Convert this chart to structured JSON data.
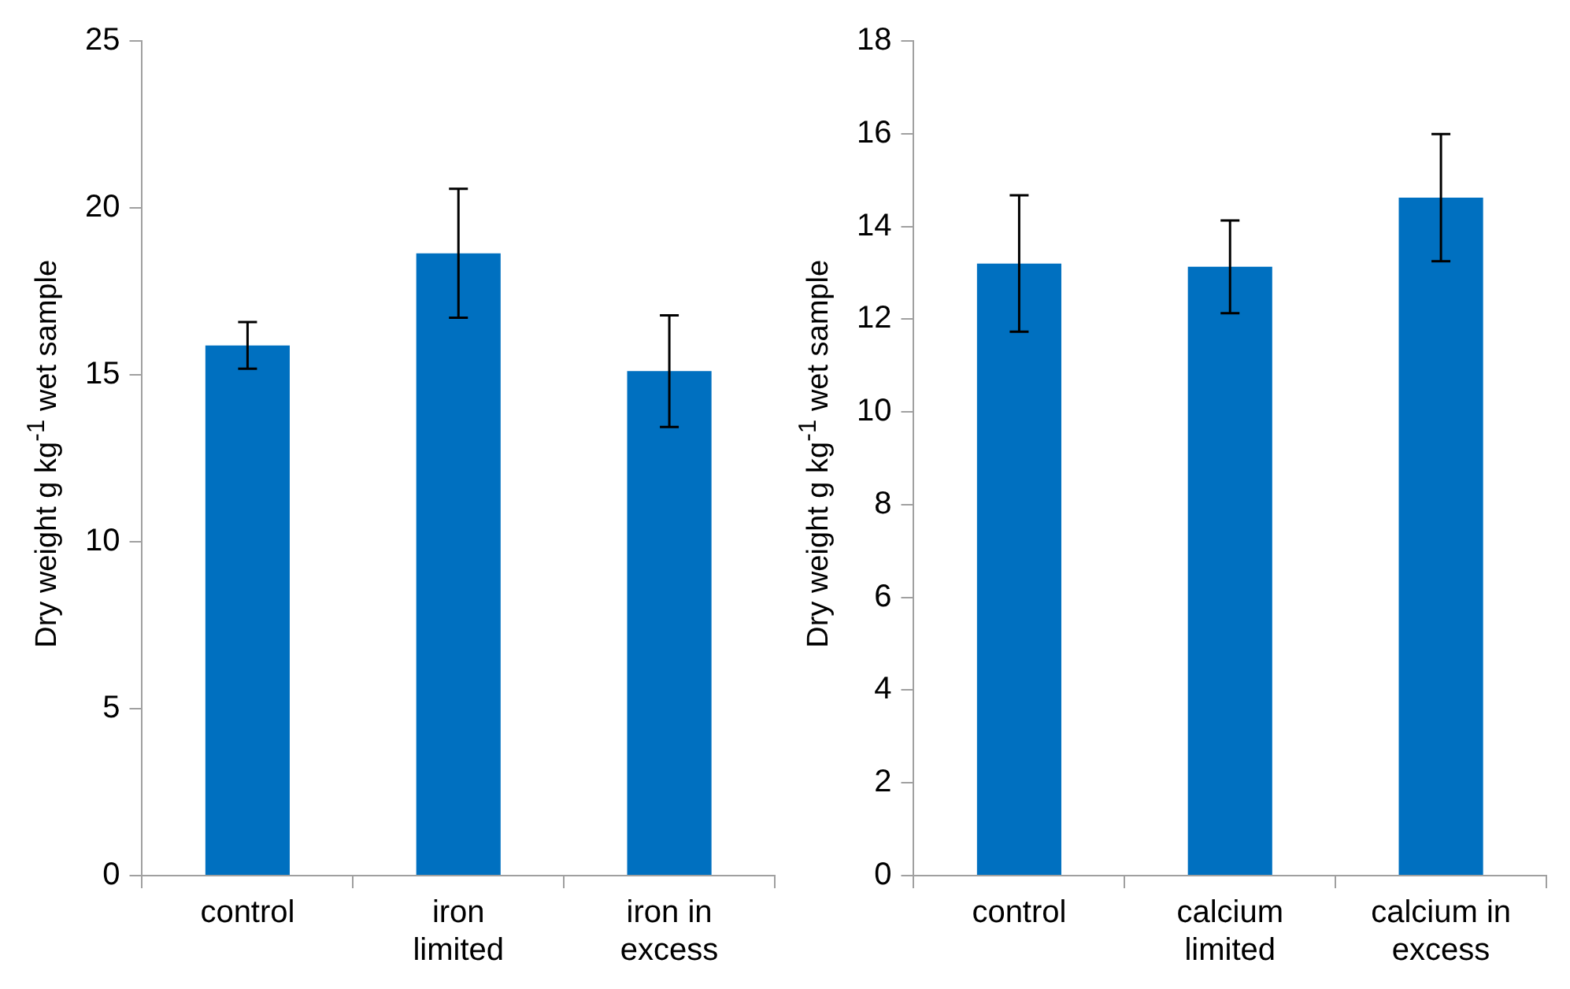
{
  "chart_data": [
    {
      "type": "bar",
      "ylabel": "Dry weight g kg$^{-1}$  wet sample",
      "categories": [
        "control",
        "iron limited",
        "iron in excess"
      ],
      "values": [
        15.88,
        18.64,
        15.11
      ],
      "errors": [
        0.7,
        1.93,
        1.67
      ],
      "color": "#0070c0",
      "ylim": [
        0,
        25
      ],
      "yticks": [
        0,
        5,
        10,
        15,
        20,
        25
      ]
    },
    {
      "type": "bar",
      "ylabel": "Dry weight g kg$^{-1}$  wet sample",
      "categories": [
        "control",
        "calcium limited",
        "calcium in excess"
      ],
      "values": [
        13.2,
        13.13,
        14.62
      ],
      "errors": [
        1.47,
        1.0,
        1.37
      ],
      "color": "#0070c0",
      "ylim": [
        0,
        18
      ],
      "yticks": [
        0,
        2,
        4,
        6,
        8,
        10,
        12,
        14,
        16,
        18
      ]
    }
  ]
}
